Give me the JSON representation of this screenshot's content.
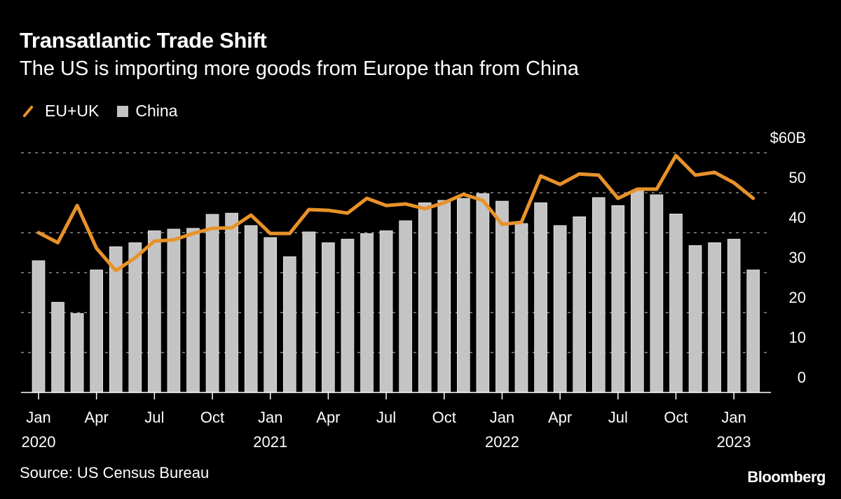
{
  "header": {
    "title": "Transatlantic Trade Shift",
    "subtitle": "The US is importing more goods from Europe than from China"
  },
  "legend": {
    "line_label": "EU+UK",
    "bar_label": "China"
  },
  "footer": {
    "source": "Source: US Census Bureau",
    "logo": "Bloomberg"
  },
  "colors": {
    "eu_uk": "#e8922a",
    "china": "#c4c4c4",
    "background": "#000000"
  },
  "chart_data": {
    "type": "bar+line",
    "title": "Transatlantic Trade Shift",
    "subtitle": "The US is importing more goods from Europe than from China",
    "ylim": [
      0,
      60
    ],
    "yticks": [
      0,
      10,
      20,
      30,
      40,
      50,
      60
    ],
    "ytick_labels": [
      "0",
      "10",
      "20",
      "30",
      "40",
      "50",
      "$60B"
    ],
    "grid": true,
    "legend_position": "top-left",
    "x": [
      "2020-01",
      "2020-02",
      "2020-03",
      "2020-04",
      "2020-05",
      "2020-06",
      "2020-07",
      "2020-08",
      "2020-09",
      "2020-10",
      "2020-11",
      "2020-12",
      "2021-01",
      "2021-02",
      "2021-03",
      "2021-04",
      "2021-05",
      "2021-06",
      "2021-07",
      "2021-08",
      "2021-09",
      "2021-10",
      "2021-11",
      "2021-12",
      "2022-01",
      "2022-02",
      "2022-03",
      "2022-04",
      "2022-05",
      "2022-06",
      "2022-07",
      "2022-08",
      "2022-09",
      "2022-10",
      "2022-11",
      "2022-12",
      "2023-01",
      "2023-02"
    ],
    "xtick_labels": [
      {
        "index": 0,
        "label": "Jan",
        "year": "2020"
      },
      {
        "index": 3,
        "label": "Apr"
      },
      {
        "index": 6,
        "label": "Jul"
      },
      {
        "index": 9,
        "label": "Oct"
      },
      {
        "index": 12,
        "label": "Jan",
        "year": "2021"
      },
      {
        "index": 15,
        "label": "Apr"
      },
      {
        "index": 18,
        "label": "Jul"
      },
      {
        "index": 21,
        "label": "Oct"
      },
      {
        "index": 24,
        "label": "Jan",
        "year": "2022"
      },
      {
        "index": 27,
        "label": "Apr"
      },
      {
        "index": 30,
        "label": "Jul"
      },
      {
        "index": 33,
        "label": "Oct"
      },
      {
        "index": 36,
        "label": "Jan",
        "year": "2023"
      }
    ],
    "series": [
      {
        "name": "China",
        "type": "bar",
        "values": [
          33.0,
          22.6,
          19.8,
          30.7,
          36.5,
          37.5,
          40.5,
          40.9,
          41.1,
          44.6,
          44.9,
          41.8,
          38.8,
          34.0,
          40.2,
          37.5,
          38.4,
          39.8,
          40.5,
          43.0,
          47.5,
          48.1,
          48.6,
          49.8,
          47.9,
          42.3,
          47.5,
          41.8,
          44.0,
          48.8,
          46.8,
          50.5,
          49.5,
          44.7,
          36.8,
          37.5,
          38.4,
          30.7
        ]
      },
      {
        "name": "EU+UK",
        "type": "line",
        "values": [
          40.0,
          37.5,
          46.8,
          36.1,
          30.5,
          33.7,
          37.9,
          38.2,
          39.8,
          41.1,
          41.2,
          44.4,
          39.8,
          39.8,
          45.8,
          45.6,
          44.9,
          48.6,
          46.8,
          47.2,
          46.0,
          47.5,
          49.6,
          48.1,
          42.1,
          42.6,
          54.2,
          52.1,
          54.7,
          54.4,
          48.6,
          50.9,
          50.9,
          59.3,
          54.4,
          55.1,
          52.5,
          48.6
        ]
      }
    ]
  }
}
